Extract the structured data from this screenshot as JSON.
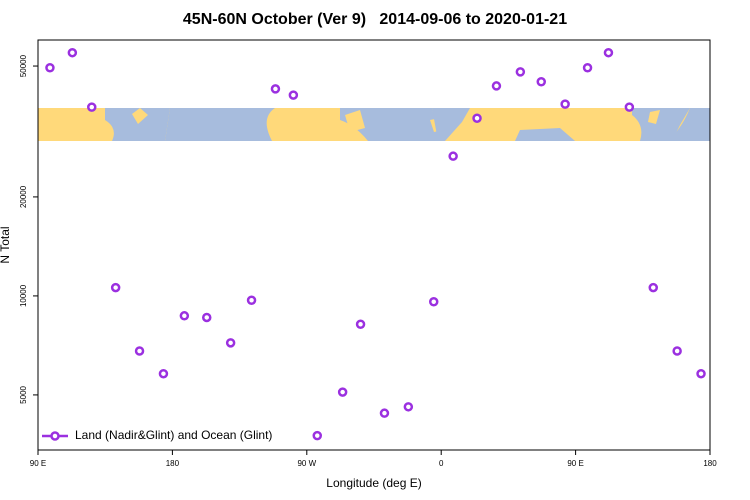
{
  "chart_data": {
    "type": "scatter",
    "title": "45N-60N October (Ver 9)   2014-09-06 to 2020-01-21",
    "x_label": "Longitude (deg E)",
    "y_label": "N Total",
    "series": [
      {
        "name": "Land (Nadir&Glint) and Ocean (Glint)",
        "color": "#9b30e0",
        "x": [
          98,
          113,
          126,
          142,
          158,
          174,
          188,
          203,
          219,
          233,
          249,
          261,
          277,
          294,
          306,
          322,
          338,
          355,
          368,
          384,
          397,
          413,
          427,
          443,
          458,
          472,
          486,
          502,
          518,
          534
        ],
        "values": [
          49400,
          54900,
          37500,
          10600,
          6800,
          5800,
          8700,
          8600,
          7200,
          9700,
          42600,
          40800,
          3760,
          5100,
          8200,
          4400,
          4600,
          9600,
          26600,
          34700,
          43500,
          48000,
          44800,
          38300,
          49400,
          54900,
          37500,
          10600,
          6800,
          5800
        ]
      }
    ],
    "xlim": [
      90,
      540
    ],
    "xticks": [
      {
        "value": 90,
        "label": "90 E"
      },
      180,
      {
        "value": 270,
        "label": "90 W"
      },
      {
        "value": 360,
        "label": "0"
      },
      {
        "value": 450,
        "label": "90 E"
      },
      {
        "value": 540,
        "label": "180"
      }
    ],
    "ylim": [
      3400,
      60000
    ],
    "yticks": [
      5000,
      10000,
      20000,
      50000
    ],
    "log_y": true,
    "legend": "bottom-left"
  }
}
